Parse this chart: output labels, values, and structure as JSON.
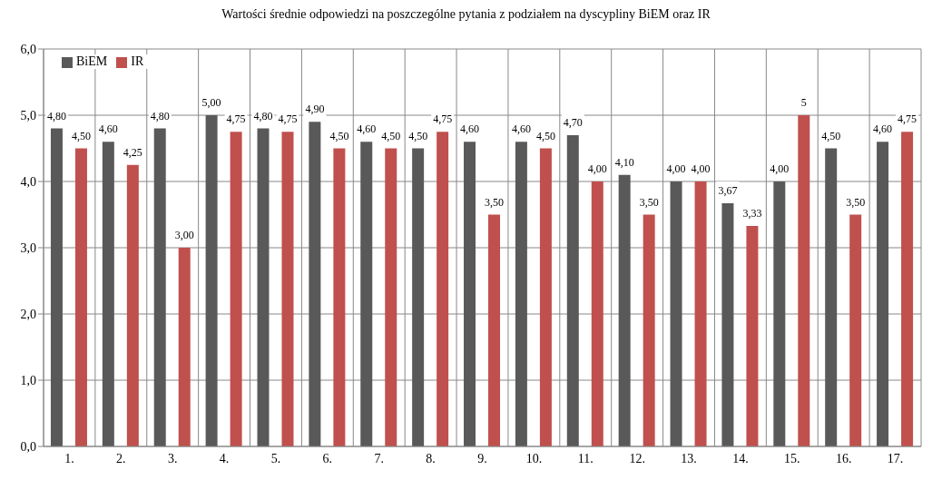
{
  "chart_data": {
    "type": "bar",
    "title": "Wartości średnie odpowiedzi na poszczególne pytania z podziałem na dyscypliny BiEM oraz IR",
    "categories": [
      "1.",
      "2.",
      "3.",
      "4.",
      "5.",
      "6.",
      "7.",
      "8.",
      "9.",
      "10.",
      "11.",
      "12.",
      "13.",
      "14.",
      "15.",
      "16.",
      "17."
    ],
    "series": [
      {
        "name": "BiEM",
        "color": "#595959",
        "values": [
          4.8,
          4.6,
          4.8,
          5.0,
          4.8,
          4.9,
          4.6,
          4.5,
          4.6,
          4.6,
          4.7,
          4.1,
          4.0,
          3.67,
          4.0,
          4.5,
          4.6
        ],
        "value_labels": [
          "4,80",
          "4,60",
          "4,80",
          "5,00",
          "4,80",
          "4,90",
          "4,60",
          "4,50",
          "4,60",
          "4,60",
          "4,70",
          "4,10",
          "4,00",
          "3,67",
          "4,00",
          "4,50",
          "4,60"
        ]
      },
      {
        "name": "IR",
        "color": "#c0504d",
        "values": [
          4.5,
          4.25,
          3.0,
          4.75,
          4.75,
          4.5,
          4.5,
          4.75,
          3.5,
          4.5,
          4.0,
          3.5,
          4.0,
          3.33,
          5,
          3.5,
          4.75
        ],
        "value_labels": [
          "4,50",
          "4,25",
          "3,00",
          "4,75",
          "4,75",
          "4,50",
          "4,50",
          "4,75",
          "3,50",
          "4,50",
          "4,00",
          "3,50",
          "4,00",
          "3,33",
          "5",
          "3,50",
          "4,75"
        ]
      }
    ],
    "ylim": [
      0,
      6
    ],
    "yticks": [
      {
        "value": 0,
        "label": "0,0"
      },
      {
        "value": 1,
        "label": "1,0"
      },
      {
        "value": 2,
        "label": "2,0"
      },
      {
        "value": 3,
        "label": "3,0"
      },
      {
        "value": 4,
        "label": "4,0"
      },
      {
        "value": 5,
        "label": "5,0"
      },
      {
        "value": 6,
        "label": "6,0"
      }
    ],
    "grid": true,
    "legend": "top left"
  }
}
